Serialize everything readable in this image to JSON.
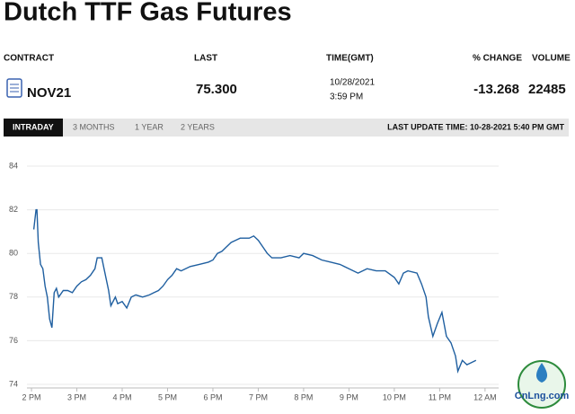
{
  "header": {
    "title": "Dutch TTF Gas Futures"
  },
  "table": {
    "columns": [
      "CONTRACT",
      "LAST",
      "TIME(GMT)",
      "% CHANGE",
      "VOLUME"
    ],
    "row": [
      "NOV21",
      "75.300",
      "10/28/2021",
      "3:59 PM",
      "-13.268",
      "22485"
    ]
  },
  "tabs": [
    "INTRADAY",
    "3 MONTHS",
    "1 YEAR",
    "2 YEARS"
  ],
  "last_update": "LAST UPDATE TIME: 10-28-2021 5:40 PM GMT",
  "watermark": "CnLng.com",
  "chart_data": {
    "type": "line",
    "x": [
      14.05,
      14.1,
      14.12,
      14.15,
      14.2,
      14.25,
      14.3,
      14.35,
      14.4,
      14.45,
      14.5,
      14.55,
      14.6,
      14.7,
      14.8,
      14.9,
      15.0,
      15.1,
      15.2,
      15.3,
      15.4,
      15.45,
      15.55,
      15.6,
      15.7,
      15.75,
      15.85,
      15.9,
      16.0,
      16.1,
      16.2,
      16.3,
      16.45,
      16.6,
      16.7,
      16.8,
      16.9,
      17.0,
      17.1,
      17.2,
      17.3,
      17.5,
      17.7,
      17.9,
      18.0,
      18.1,
      18.2,
      18.3,
      18.4,
      18.5,
      18.6,
      18.8,
      18.9,
      19.0,
      19.1,
      19.2,
      19.3,
      19.5,
      19.7,
      19.9,
      20.0,
      20.2,
      20.4,
      20.6,
      20.8,
      21.0,
      21.2,
      21.4,
      21.6,
      21.8,
      22.0,
      22.1,
      22.2,
      22.3,
      22.5,
      22.6,
      22.7,
      22.75,
      22.85,
      22.95,
      23.05,
      23.15,
      23.25,
      23.35,
      23.4,
      23.5,
      23.6,
      23.7,
      23.8
    ],
    "series": [
      {
        "color": "#1f5fa0",
        "values": [
          81.1,
          82.0,
          82.0,
          80.5,
          79.5,
          79.3,
          78.5,
          78.0,
          77.0,
          76.6,
          78.2,
          78.4,
          78.0,
          78.3,
          78.3,
          78.2,
          78.5,
          78.7,
          78.8,
          79.0,
          79.3,
          79.8,
          79.8,
          79.3,
          78.3,
          77.6,
          78.0,
          77.7,
          77.8,
          77.5,
          78.0,
          78.1,
          78.0,
          78.1,
          78.2,
          78.3,
          78.5,
          78.8,
          79.0,
          79.3,
          79.2,
          79.4,
          79.5,
          79.6,
          79.7,
          80.0,
          80.1,
          80.3,
          80.5,
          80.6,
          80.7,
          80.7,
          80.8,
          80.6,
          80.3,
          80.0,
          79.8,
          79.8,
          79.9,
          79.8,
          80.0,
          79.9,
          79.7,
          79.6,
          79.5,
          79.3,
          79.1,
          79.3,
          79.2,
          79.2,
          78.9,
          78.6,
          79.1,
          79.2,
          79.1,
          78.6,
          78.0,
          77.1,
          76.2,
          76.8,
          77.3,
          76.2,
          75.9,
          75.3,
          74.6,
          75.1,
          74.9,
          75.0,
          75.1
        ]
      }
    ],
    "xlim": [
      13.9,
      24.3
    ],
    "xticks": [
      {
        "value": 14,
        "label": "2 PM"
      },
      {
        "value": 15,
        "label": "3 PM"
      },
      {
        "value": 16,
        "label": "4 PM"
      },
      {
        "value": 17,
        "label": "5 PM"
      },
      {
        "value": 18,
        "label": "6 PM"
      },
      {
        "value": 19,
        "label": "7 PM"
      },
      {
        "value": 20,
        "label": "8 PM"
      },
      {
        "value": 21,
        "label": "9 PM"
      },
      {
        "value": 22,
        "label": "10 PM"
      },
      {
        "value": 23,
        "label": "11 PM"
      },
      {
        "value": 24,
        "label": "12 AM"
      }
    ],
    "ylim": [
      74,
      84
    ],
    "yticks": [
      74,
      76,
      78,
      80,
      82,
      84
    ],
    "grid": true
  }
}
